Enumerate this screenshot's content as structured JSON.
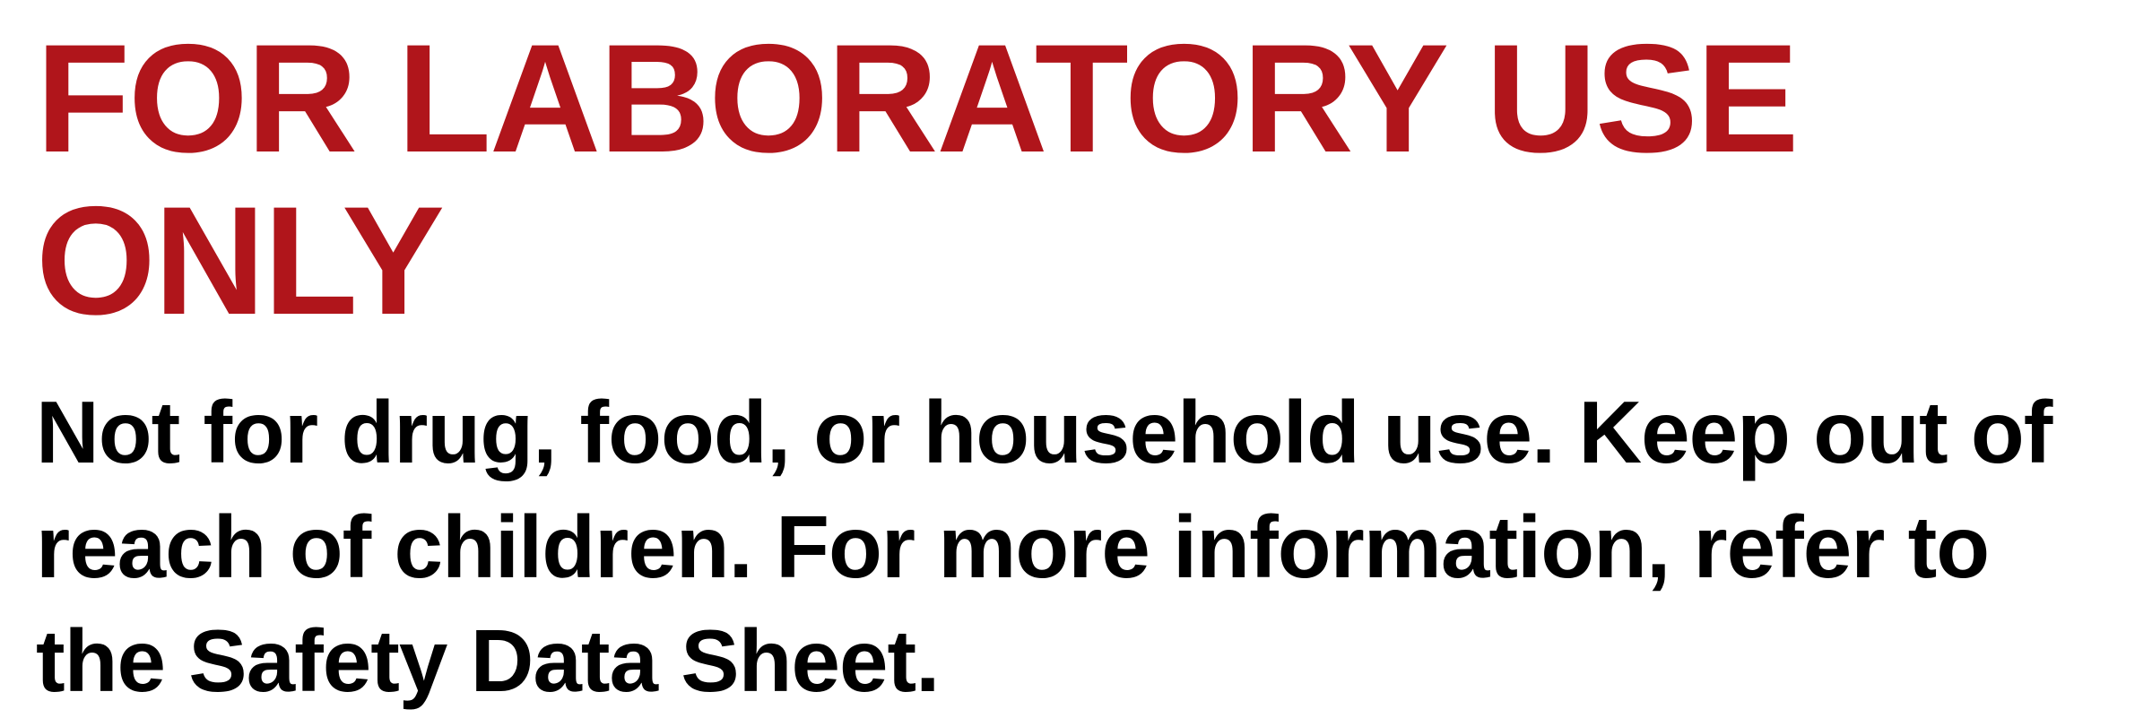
{
  "label": {
    "heading": "FOR LABORATORY USE ONLY",
    "heading_color": "#b0151b",
    "body": "Not for drug, food, or household use. Keep out of reach of children. For more information, refer to the Safety Data Sheet.",
    "body_color": "#000000",
    "background_color": "#ffffff",
    "heading_fontsize": 172,
    "body_fontsize": 98,
    "font_weight": 900,
    "font_family": "Arial Black"
  }
}
